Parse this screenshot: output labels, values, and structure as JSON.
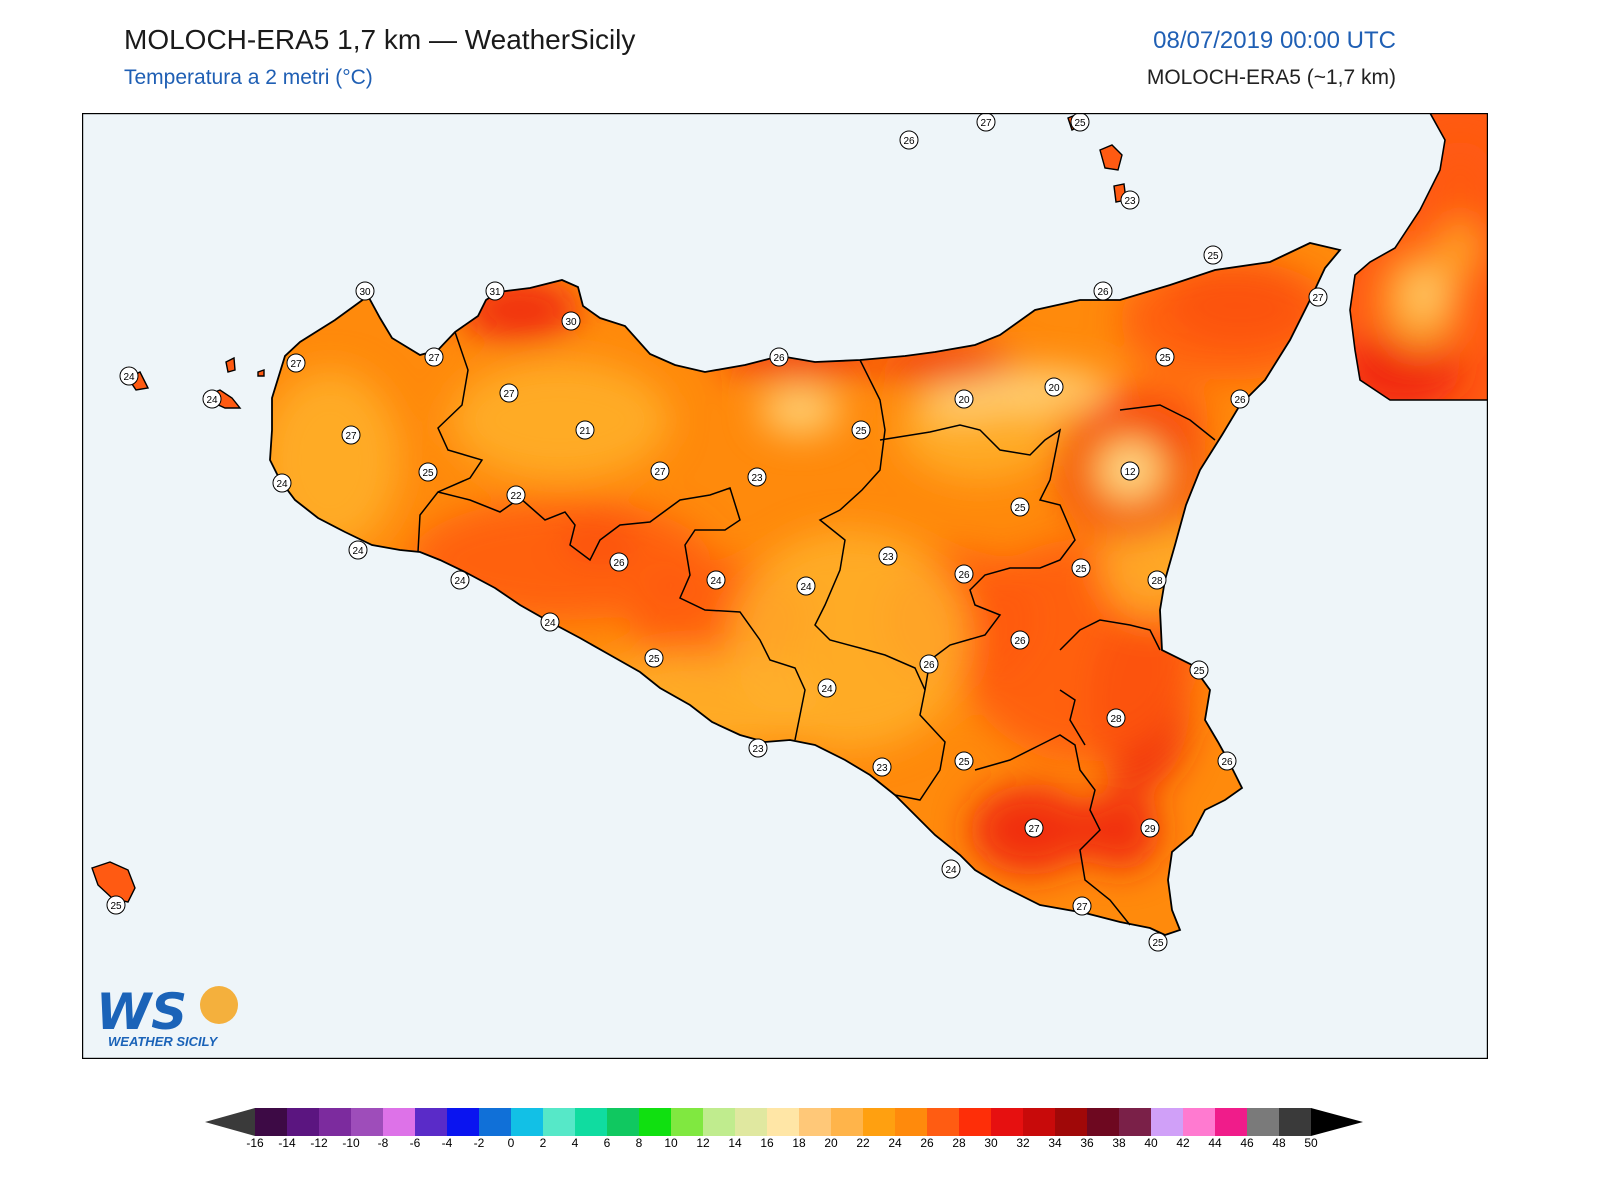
{
  "header": {
    "title": "MOLOCH-ERA5 1,7 km — WeatherSicily",
    "subtitle": "Temperatura a 2 metri (°C)",
    "datetime": "08/07/2019 00:00 UTC",
    "model": "MOLOCH-ERA5 (~1,7 km)"
  },
  "logo": {
    "letters": "WS",
    "name": "WEATHER SICILY"
  },
  "colors": {
    "sea": "#eef5f9",
    "land_base": "#ff8a0c",
    "warm": "#ff5a12",
    "hot": "#ee1c0e",
    "mild": "#ffb02a",
    "cool": "#ffd880",
    "cold": "#fff3c0",
    "marker_bg": "#ffffff",
    "border": "#000000"
  },
  "colorbar": {
    "ticks": [
      "-16",
      "-14",
      "-12",
      "-10",
      "-8",
      "-6",
      "-4",
      "-2",
      "0",
      "2",
      "4",
      "6",
      "8",
      "10",
      "12",
      "14",
      "16",
      "18",
      "20",
      "22",
      "24",
      "26",
      "28",
      "30",
      "32",
      "34",
      "36",
      "38",
      "40",
      "42",
      "44",
      "46",
      "48",
      "50"
    ],
    "colors": [
      "#3d0a45",
      "#5b1580",
      "#7c2b9e",
      "#9e4dba",
      "#dd72e8",
      "#5a2bc8",
      "#0a14f0",
      "#1070d8",
      "#12c0e6",
      "#56e8c8",
      "#10dca0",
      "#10c860",
      "#10e010",
      "#80e840",
      "#c0ec8e",
      "#e0e8a0",
      "#ffe6a6",
      "#ffc878",
      "#ffb44a",
      "#ffa010",
      "#ff8a0c",
      "#ff5c12",
      "#fe2e08",
      "#e61010",
      "#c80a0a",
      "#a00808",
      "#6e0820",
      "#7a2048",
      "#d0a0f8",
      "#ff7ad0",
      "#f01c8a",
      "#7a7a7a",
      "#3a3a3a"
    ],
    "left_arrow_color": "#3a3a3a",
    "right_arrow_color": "#000000"
  },
  "map_data": {
    "stations": [
      {
        "label": "26"
      },
      {
        "label": "27"
      },
      {
        "label": "25"
      },
      {
        "label": "23"
      },
      {
        "label": "25"
      },
      {
        "label": "30"
      },
      {
        "label": "31"
      },
      {
        "label": "30"
      },
      {
        "label": "27"
      },
      {
        "label": "27"
      },
      {
        "label": "26"
      },
      {
        "label": "26"
      },
      {
        "label": "27"
      },
      {
        "label": "24"
      },
      {
        "label": "24"
      },
      {
        "label": "27"
      },
      {
        "label": "27"
      },
      {
        "label": "25"
      },
      {
        "label": "21"
      },
      {
        "label": "20"
      },
      {
        "label": "20"
      },
      {
        "label": "25"
      },
      {
        "label": "26"
      },
      {
        "label": "27"
      },
      {
        "label": "25"
      },
      {
        "label": "24"
      },
      {
        "label": "22"
      },
      {
        "label": "23"
      },
      {
        "label": "12"
      },
      {
        "label": "25"
      },
      {
        "label": "24"
      },
      {
        "label": "26"
      },
      {
        "label": "23"
      },
      {
        "label": "26"
      },
      {
        "label": "25"
      },
      {
        "label": "24"
      },
      {
        "label": "24"
      },
      {
        "label": "24"
      },
      {
        "label": "28"
      },
      {
        "label": "24"
      },
      {
        "label": "26"
      },
      {
        "label": "25"
      },
      {
        "label": "26"
      },
      {
        "label": "25"
      },
      {
        "label": "24"
      },
      {
        "label": "28"
      },
      {
        "label": "23"
      },
      {
        "label": "23"
      },
      {
        "label": "25"
      },
      {
        "label": "26"
      },
      {
        "label": "27"
      },
      {
        "label": "29"
      },
      {
        "label": "24"
      },
      {
        "label": "27"
      },
      {
        "label": "25"
      },
      {
        "label": "25"
      }
    ]
  }
}
